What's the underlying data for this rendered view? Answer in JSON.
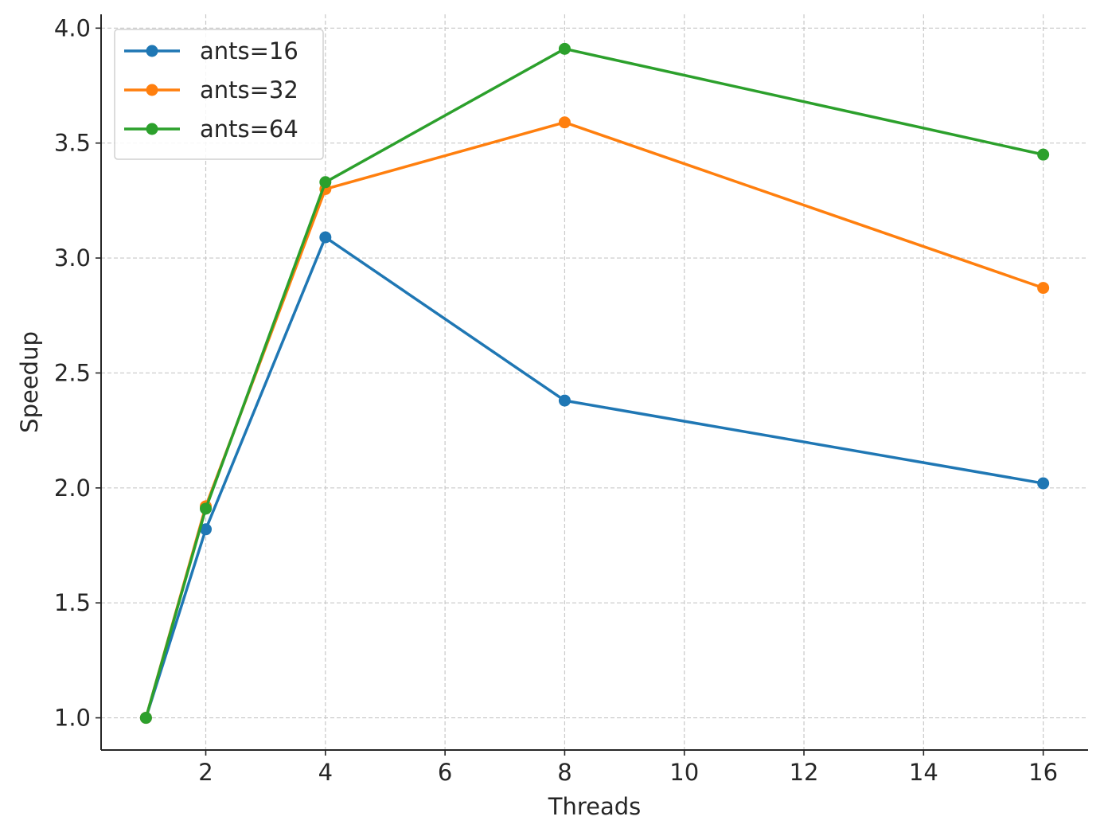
{
  "chart_data": {
    "type": "line",
    "title": "",
    "xlabel": "Threads",
    "ylabel": "Speedup",
    "xlim": [
      0.25,
      16.75
    ],
    "ylim": [
      0.86,
      4.06
    ],
    "xticks": [
      2,
      4,
      6,
      8,
      10,
      12,
      14,
      16
    ],
    "yticks": [
      1.0,
      1.5,
      2.0,
      2.5,
      3.0,
      3.5,
      4.0
    ],
    "xtick_labels": [
      "2",
      "4",
      "6",
      "8",
      "10",
      "12",
      "14",
      "16"
    ],
    "ytick_labels": [
      "1.0",
      "1.5",
      "2.0",
      "2.5",
      "3.0",
      "3.5",
      "4.0"
    ],
    "grid": true,
    "legend_position": "top-left",
    "x": [
      1,
      2,
      4,
      8,
      16
    ],
    "series": [
      {
        "name": "ants=16",
        "color": "#1f77b4",
        "values": [
          1.0,
          1.82,
          3.09,
          2.38,
          2.02
        ]
      },
      {
        "name": "ants=32",
        "color": "#ff7f0e",
        "values": [
          1.0,
          1.92,
          3.3,
          3.59,
          2.87
        ]
      },
      {
        "name": "ants=64",
        "color": "#2ca02c",
        "values": [
          1.0,
          1.91,
          3.33,
          3.91,
          3.45
        ]
      }
    ]
  }
}
